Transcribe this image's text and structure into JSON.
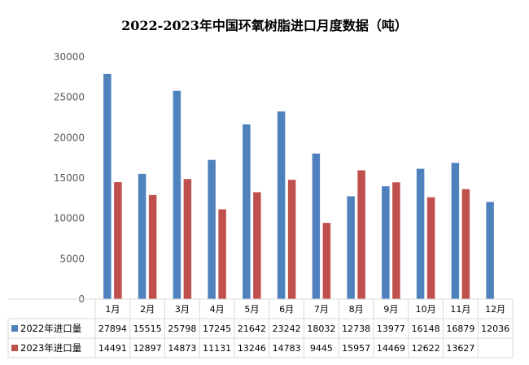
{
  "chart_data": {
    "type": "bar",
    "title": "2022-2023年中国环氧树脂进口月度数据（吨）",
    "categories": [
      "1月",
      "2月",
      "3月",
      "4月",
      "5月",
      "6月",
      "7月",
      "8月",
      "9月",
      "10月",
      "11月",
      "12月"
    ],
    "series": [
      {
        "name": "2022年进口量",
        "color": "#4F81BD",
        "values": [
          27894,
          15515,
          25798,
          17245,
          21642,
          23242,
          18032,
          12738,
          13977,
          16148,
          16879,
          12036
        ]
      },
      {
        "name": "2023年进口量",
        "color": "#C0504D",
        "values": [
          14491,
          12897,
          14873,
          11131,
          13246,
          14783,
          9445,
          15957,
          14469,
          12622,
          13627,
          null
        ]
      }
    ],
    "ylim": [
      0,
      30000
    ],
    "yticks": [
      "0",
      "5000",
      "10000",
      "15000",
      "20000",
      "25000",
      "30000"
    ],
    "xlabel": "",
    "ylabel": "",
    "grid": false,
    "data_table": true
  }
}
